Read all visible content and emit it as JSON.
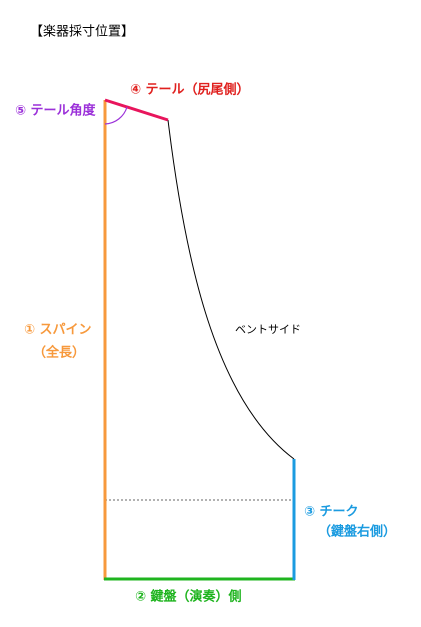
{
  "title": "【楽器採寸位置】",
  "labels": {
    "tail": "④ テール（尻尾側）",
    "tail_angle": "⑤ テール角度",
    "spine": "① スパイン",
    "spine_note": "（全長）",
    "bentside": "ベントサイド",
    "cheek": "③ チーク",
    "cheek_note": "（鍵盤右側）",
    "keyboard": "② 鍵盤（演奏）側"
  }
}
